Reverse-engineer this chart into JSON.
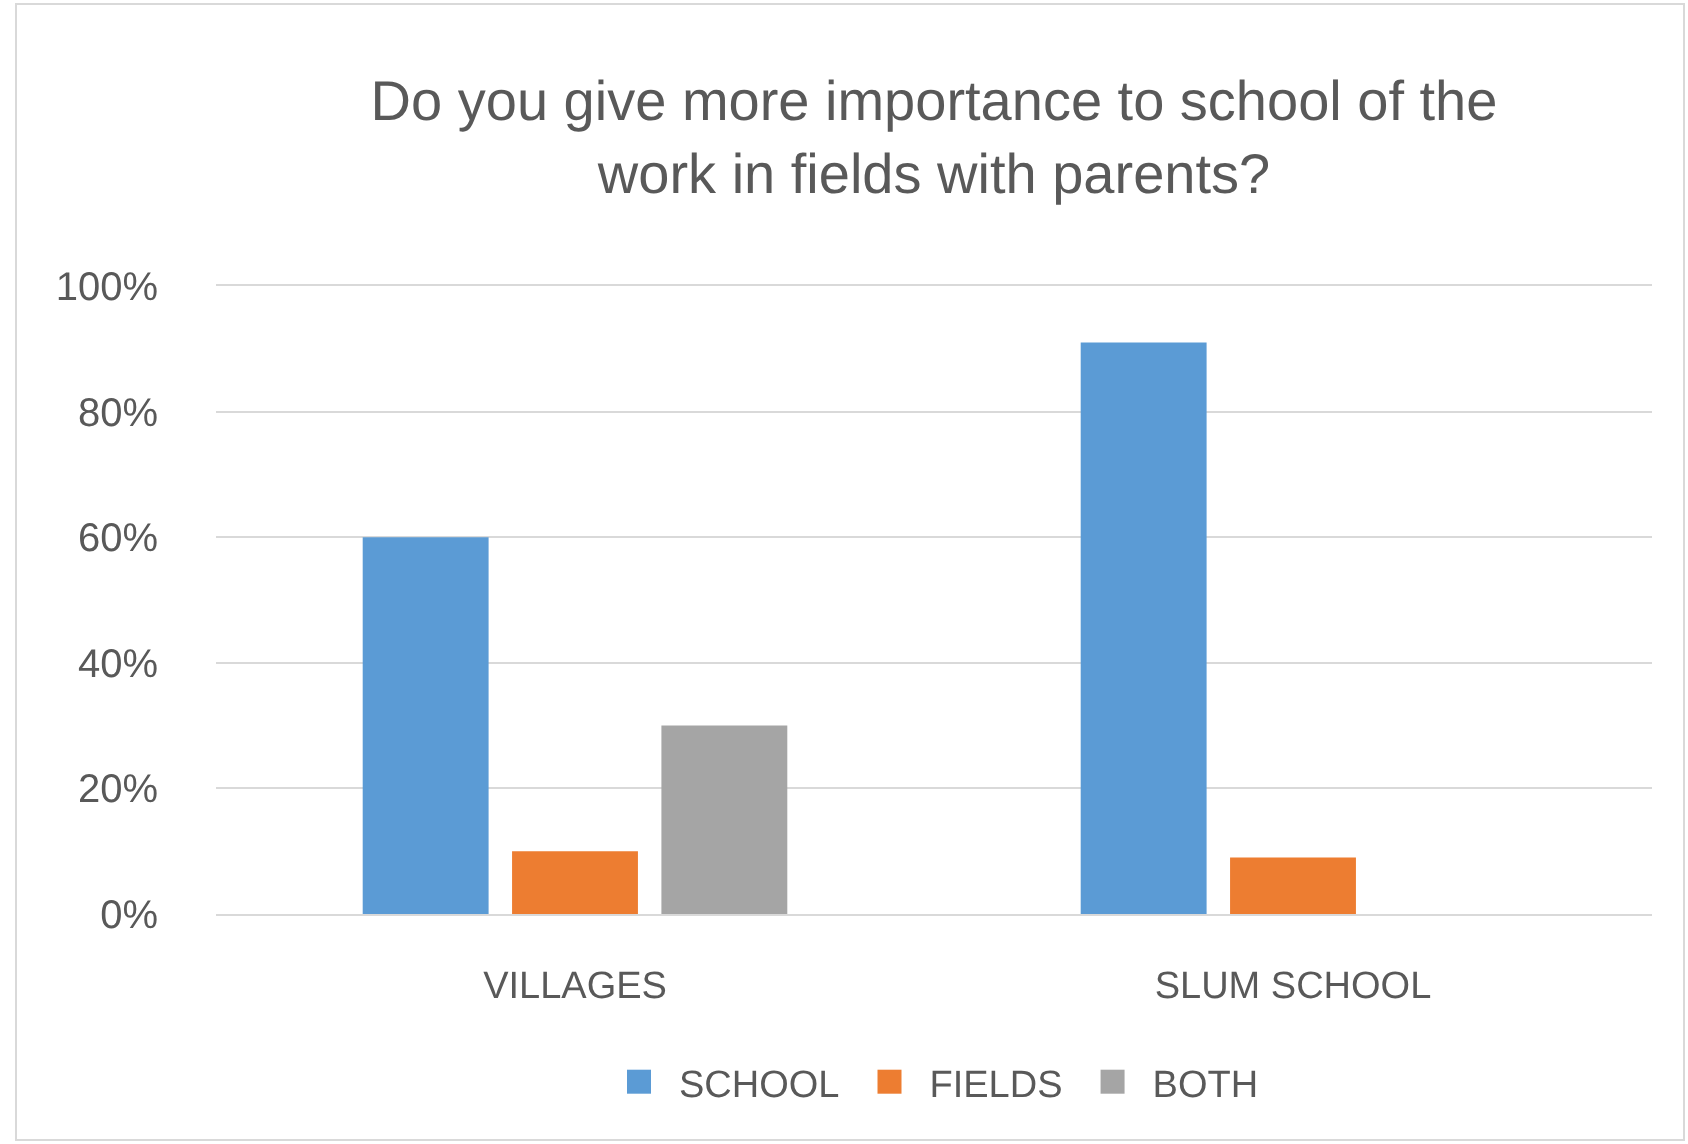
{
  "chart_data": {
    "type": "bar",
    "title": "Do you give more importance to school of the work in fields with parents?",
    "categories": [
      "VILLAGES",
      "SLUM SCHOOL"
    ],
    "series": [
      {
        "name": "SCHOOL",
        "color": "#5b9bd5",
        "values": [
          60,
          91
        ]
      },
      {
        "name": "FIELDS",
        "color": "#ed7d31",
        "values": [
          10,
          9
        ]
      },
      {
        "name": "BOTH",
        "color": "#a5a5a5",
        "values": [
          30,
          0
        ]
      }
    ],
    "ylim": [
      0,
      100
    ],
    "yticks": [
      {
        "value": 0,
        "label": "0%"
      },
      {
        "value": 20,
        "label": "20%"
      },
      {
        "value": 40,
        "label": "40%"
      },
      {
        "value": 60,
        "label": "60%"
      },
      {
        "value": 80,
        "label": "80%"
      },
      {
        "value": 100,
        "label": "100%"
      }
    ],
    "grid": "y",
    "legend": "bottom"
  }
}
